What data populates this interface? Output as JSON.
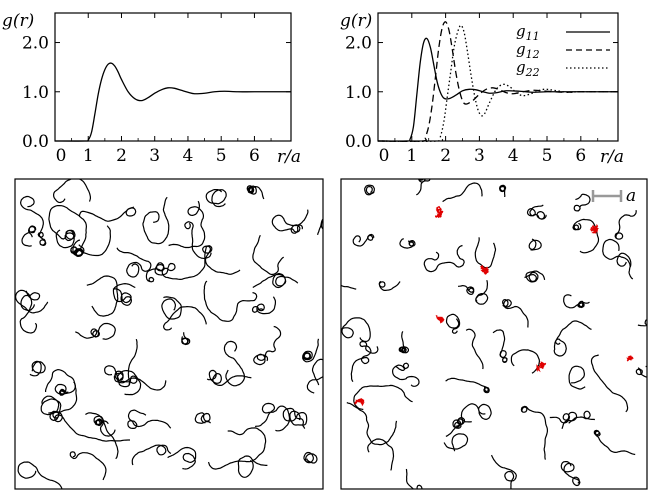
{
  "chart_data": [
    {
      "type": "line",
      "panel": "top-left",
      "ylabel": "g(r)",
      "xlabel": "r/a",
      "xlim": [
        0,
        7.1
      ],
      "ylim": [
        0,
        2.6
      ],
      "xticks": [
        "0",
        "1",
        "2",
        "3",
        "4",
        "5",
        "6"
      ],
      "yticks": [
        "0.0",
        "1.0",
        "2.0"
      ],
      "grid": false,
      "series": [
        {
          "color": "#000000",
          "dash": "solid",
          "x": [
            0,
            0.9,
            1.0,
            1.1,
            1.2,
            1.3,
            1.4,
            1.5,
            1.6,
            1.7,
            1.8,
            1.9,
            2.0,
            2.2,
            2.4,
            2.6,
            2.8,
            3.0,
            3.2,
            3.4,
            3.6,
            3.8,
            4.0,
            4.2,
            4.5,
            4.8,
            5.1,
            5.5,
            6.0,
            7.1
          ],
          "y": [
            0,
            0,
            0.02,
            0.18,
            0.55,
            0.95,
            1.25,
            1.45,
            1.56,
            1.58,
            1.52,
            1.4,
            1.25,
            1.0,
            0.86,
            0.82,
            0.88,
            0.97,
            1.04,
            1.08,
            1.07,
            1.03,
            0.99,
            0.96,
            0.97,
            1.0,
            1.01,
            1.0,
            1.0,
            1.0
          ]
        }
      ]
    },
    {
      "type": "line",
      "panel": "top-right",
      "ylabel": "g(r)",
      "xlabel": "r/a",
      "xlim": [
        0,
        7.1
      ],
      "ylim": [
        0,
        2.6
      ],
      "xticks": [
        "0",
        "1",
        "2",
        "3",
        "4",
        "5",
        "6"
      ],
      "yticks": [
        "0.0",
        "1.0",
        "2.0"
      ],
      "legend_position": "top-right",
      "grid": false,
      "series": [
        {
          "name": "g11",
          "color": "#000000",
          "dash": "solid",
          "x": [
            0,
            0.85,
            0.95,
            1.05,
            1.15,
            1.25,
            1.35,
            1.45,
            1.55,
            1.65,
            1.75,
            1.85,
            1.95,
            2.1,
            2.3,
            2.5,
            2.7,
            2.9,
            3.1,
            3.3,
            3.5,
            3.8,
            4.2,
            4.6,
            5.0,
            5.5,
            6.0,
            7.1
          ],
          "y": [
            0,
            0,
            0.04,
            0.3,
            0.95,
            1.6,
            2.0,
            2.08,
            1.9,
            1.55,
            1.2,
            0.98,
            0.87,
            0.86,
            0.93,
            1.02,
            1.05,
            1.04,
            1.0,
            0.97,
            0.98,
            1.02,
            1.01,
            0.99,
            1.0,
            1.0,
            1.0,
            1.0
          ]
        },
        {
          "name": "g12",
          "color": "#000000",
          "dash": "dashed",
          "x": [
            0,
            1.3,
            1.4,
            1.5,
            1.6,
            1.7,
            1.8,
            1.9,
            2.0,
            2.1,
            2.2,
            2.3,
            2.4,
            2.5,
            2.6,
            2.8,
            3.0,
            3.2,
            3.4,
            3.6,
            3.8,
            4.0,
            4.3,
            4.6,
            5.0,
            5.5,
            6.0,
            7.1
          ],
          "y": [
            0,
            0,
            0.08,
            0.3,
            0.72,
            1.3,
            1.9,
            2.3,
            2.42,
            2.25,
            1.85,
            1.4,
            1.05,
            0.82,
            0.75,
            0.82,
            0.95,
            1.05,
            1.08,
            1.04,
            0.98,
            0.96,
            1.0,
            1.03,
            1.01,
            0.99,
            1.0,
            1.0
          ]
        },
        {
          "name": "g22",
          "color": "#000000",
          "dash": "dotted",
          "x": [
            0,
            1.75,
            1.85,
            1.95,
            2.05,
            2.15,
            2.25,
            2.35,
            2.45,
            2.55,
            2.65,
            2.75,
            2.85,
            2.95,
            3.05,
            3.15,
            3.3,
            3.5,
            3.7,
            3.9,
            4.1,
            4.3,
            4.6,
            4.9,
            5.2,
            5.6,
            6.0,
            7.1
          ],
          "y": [
            0,
            0,
            0.1,
            0.4,
            0.9,
            1.4,
            1.9,
            2.2,
            2.35,
            2.2,
            1.8,
            1.35,
            0.95,
            0.65,
            0.52,
            0.55,
            0.78,
            1.05,
            1.15,
            1.1,
            0.98,
            0.92,
            0.98,
            1.05,
            1.03,
            0.99,
            1.0,
            1.0
          ]
        }
      ]
    }
  ],
  "scale_bar_label": "a"
}
